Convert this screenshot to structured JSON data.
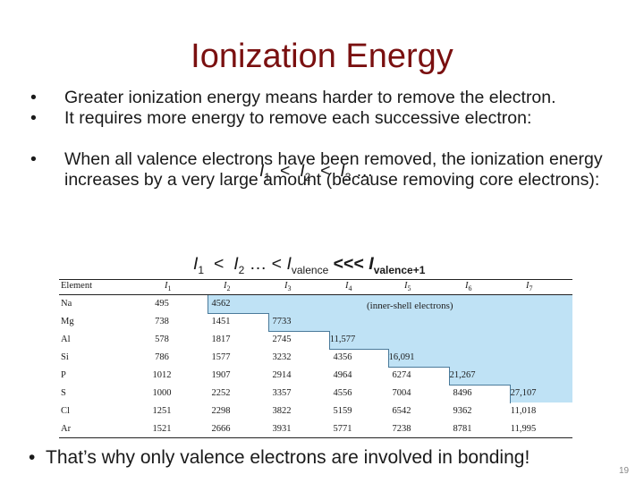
{
  "title": "Ionization Energy",
  "bullets": [
    "Greater ionization energy means harder to remove the electron.",
    "It requires more energy to remove each successive electron:",
    "When all valence electrons have been removed, the ionization energy increases by a very large amount (because removing core electrons):"
  ],
  "formula1": {
    "a": "I",
    "s1": "1",
    "lt1": "<",
    "s2": "2",
    "lt2": "<",
    "s3": "3",
    "dots": "…"
  },
  "formula2": {
    "a": "I",
    "s1": "1",
    "lt1": "<",
    "s2": "2",
    "mid": "… <",
    "sv": "valence",
    "ltv": "<<<",
    "svp": "valence+1"
  },
  "table": {
    "headers": [
      "Element",
      "I1",
      "I2",
      "I3",
      "I4",
      "I5",
      "I6",
      "I7"
    ],
    "inner_label": "(inner-shell electrons)",
    "rows": [
      {
        "el": "Na",
        "v": [
          "495",
          "4562",
          "",
          "",
          "",
          "",
          ""
        ]
      },
      {
        "el": "Mg",
        "v": [
          "738",
          "1451",
          "7733",
          "",
          "",
          "",
          ""
        ]
      },
      {
        "el": "Al",
        "v": [
          "578",
          "1817",
          "2745",
          "11,577",
          "",
          "",
          ""
        ]
      },
      {
        "el": "Si",
        "v": [
          "786",
          "1577",
          "3232",
          "4356",
          "16,091",
          "",
          ""
        ]
      },
      {
        "el": "P",
        "v": [
          "1012",
          "1907",
          "2914",
          "4964",
          "6274",
          "21,267",
          ""
        ]
      },
      {
        "el": "S",
        "v": [
          "1000",
          "2252",
          "3357",
          "4556",
          "7004",
          "8496",
          "27,107"
        ]
      },
      {
        "el": "Cl",
        "v": [
          "1251",
          "2298",
          "3822",
          "5159",
          "6542",
          "9362",
          "11,018"
        ]
      },
      {
        "el": "Ar",
        "v": [
          "1521",
          "2666",
          "3931",
          "5771",
          "7238",
          "8781",
          "11,995"
        ]
      }
    ]
  },
  "bottom_bullet": "That’s why only valence electrons are involved in bonding!",
  "page_number": "19"
}
